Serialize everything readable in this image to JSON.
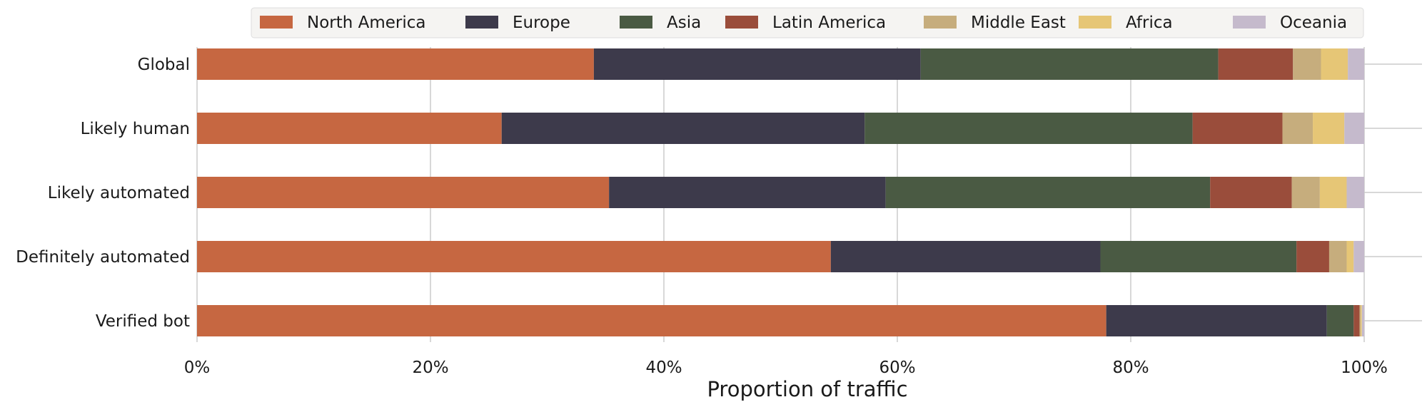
{
  "chart_data": {
    "type": "bar",
    "orientation": "horizontal",
    "stacked": true,
    "title": "",
    "xlabel": "Proportion of traffic",
    "ylabel": "",
    "xlim": [
      0,
      100
    ],
    "x_ticks": [
      "0%",
      "20%",
      "40%",
      "60%",
      "80%",
      "100%"
    ],
    "grid": "vertical",
    "legend_position": "top",
    "categories": [
      "Global",
      "Likely human",
      "Likely automated",
      "Definitely automated",
      "Verified bot"
    ],
    "series": [
      {
        "name": "North America",
        "color": "#c66741",
        "values": [
          34.0,
          26.1,
          35.3,
          54.3,
          77.9
        ]
      },
      {
        "name": "Europe",
        "color": "#3d3a4b",
        "values": [
          28.0,
          31.1,
          23.7,
          23.1,
          18.9
        ]
      },
      {
        "name": "Asia",
        "color": "#4a5a43",
        "values": [
          25.5,
          28.1,
          27.8,
          16.8,
          2.3
        ]
      },
      {
        "name": "Latin America",
        "color": "#9a4d3b",
        "values": [
          6.4,
          7.7,
          7.0,
          2.8,
          0.5
        ]
      },
      {
        "name": "Middle East",
        "color": "#c6ad7d",
        "values": [
          2.4,
          2.6,
          2.4,
          1.5,
          0.1
        ]
      },
      {
        "name": "Africa",
        "color": "#e6c676",
        "values": [
          2.3,
          2.7,
          2.3,
          0.6,
          0.1
        ]
      },
      {
        "name": "Oceania",
        "color": "#c5bacc",
        "values": [
          1.4,
          1.7,
          1.5,
          0.9,
          0.2
        ]
      }
    ]
  }
}
